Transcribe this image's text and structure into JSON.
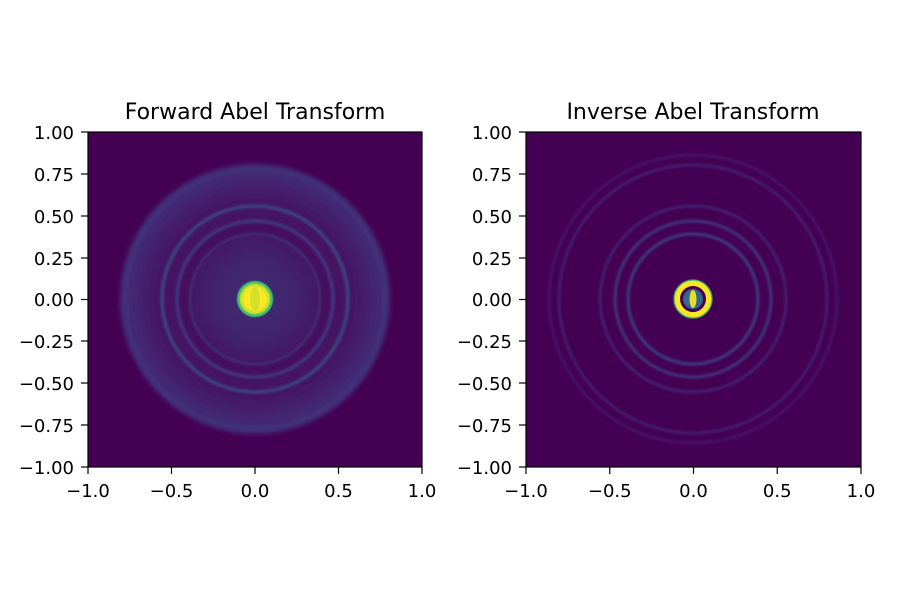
{
  "chart_data": [
    {
      "type": "heatmap",
      "title": "Forward Abel Transform",
      "xlabel": "",
      "ylabel": "",
      "xlim": [
        -1.0,
        1.0
      ],
      "ylim": [
        -1.0,
        1.0
      ],
      "xticks": [
        "−1.0",
        "−0.5",
        "0.0",
        "0.5",
        "1.0"
      ],
      "yticks": [
        "1.00",
        "0.75",
        "0.50",
        "0.25",
        "0.00",
        "−0.25",
        "−0.50",
        "−0.75",
        "−1.00"
      ],
      "colormap": "viridis",
      "grid": false,
      "background": "#440154",
      "features": [
        {
          "shape": "bright-core",
          "center": [
            0.0,
            0.0
          ],
          "radius": 0.07,
          "intensity": 1.0
        },
        {
          "shape": "diffuse-ring",
          "center": [
            0.0,
            0.0
          ],
          "radius": 0.38,
          "intensity": 0.28
        },
        {
          "shape": "ring",
          "center": [
            0.0,
            0.0
          ],
          "radius": 0.47,
          "intensity": 0.25
        },
        {
          "shape": "ring",
          "center": [
            0.0,
            0.0
          ],
          "radius": 0.57,
          "intensity": 0.18
        },
        {
          "shape": "faint-ring",
          "center": [
            0.0,
            0.0
          ],
          "radius": 0.85,
          "intensity": 0.12
        }
      ]
    },
    {
      "type": "heatmap",
      "title": "Inverse Abel Transform",
      "xlabel": "",
      "ylabel": "",
      "xlim": [
        -1.0,
        1.0
      ],
      "ylim": [
        -1.0,
        1.0
      ],
      "xticks": [
        "−1.0",
        "−0.5",
        "0.0",
        "0.5",
        "1.0"
      ],
      "yticks": [
        "1.00",
        "0.75",
        "0.50",
        "0.25",
        "0.00",
        "−0.25",
        "−0.50",
        "−0.75",
        "−1.00"
      ],
      "colormap": "viridis",
      "grid": false,
      "background": "#440154",
      "features": [
        {
          "shape": "bright-ring",
          "center": [
            0.0,
            0.0
          ],
          "radius": 0.07,
          "intensity": 1.0
        },
        {
          "shape": "ring",
          "center": [
            0.0,
            0.0
          ],
          "radius": 0.38,
          "intensity": 0.25
        },
        {
          "shape": "ring",
          "center": [
            0.0,
            0.0
          ],
          "radius": 0.47,
          "intensity": 0.22
        },
        {
          "shape": "faint-ring",
          "center": [
            0.0,
            0.0
          ],
          "radius": 0.57,
          "intensity": 0.12
        },
        {
          "shape": "faint-ring",
          "center": [
            0.0,
            0.0
          ],
          "radius": 0.85,
          "intensity": 0.08
        }
      ]
    }
  ]
}
